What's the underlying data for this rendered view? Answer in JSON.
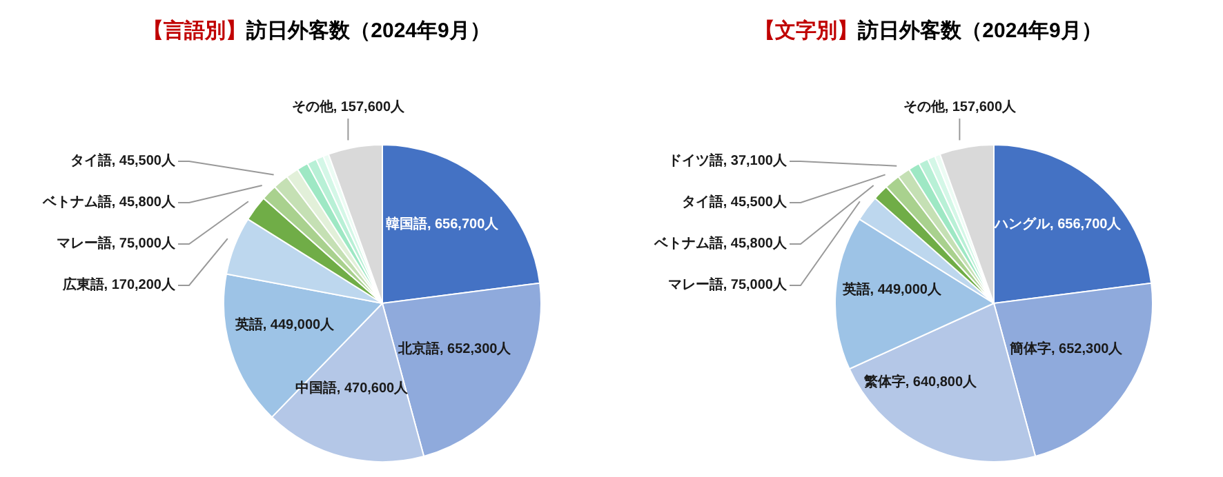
{
  "chart_data": [
    {
      "type": "pie",
      "title": "【言語別】訪日外客数（2024年9月）",
      "categories": [
        "韓国語",
        "北京語",
        "中国語",
        "英語",
        "広東語",
        "マレー語",
        "ベトナム語",
        "タイ語",
        null,
        null,
        null,
        null,
        null,
        "その他"
      ],
      "values": [
        656700,
        652300,
        470600,
        449000,
        170200,
        75000,
        45800,
        45500,
        37100,
        33000,
        28000,
        22000,
        16000,
        157600
      ],
      "value_labels": [
        "656,700人",
        "652,300人",
        "470,600人",
        "449,000人",
        "170,200人",
        "75,000人",
        "45,800人",
        "45,500人",
        null,
        null,
        null,
        null,
        null,
        "157,600人"
      ],
      "colors": [
        "#4472c4",
        "#8faadc",
        "#b4c7e7",
        "#9dc3e6",
        "#bdd7ee",
        "#70ad47",
        "#a9d18e",
        "#c5e0b4",
        "#e2f0d9",
        "#9ee8c4",
        "#b8f0d6",
        "#d4f7e7",
        "#ecfcf4",
        "#d9d9d9"
      ],
      "legend": false
    },
    {
      "type": "pie",
      "title": "【文字別】訪日外客数（2024年9月）",
      "categories": [
        "ハングル",
        "簡体字",
        "繁体字",
        "英語",
        "マレー語",
        "ベトナム語",
        "タイ語",
        "ドイツ語",
        null,
        null,
        null,
        null,
        "その他"
      ],
      "values": [
        656700,
        652300,
        640800,
        449000,
        75000,
        45800,
        45500,
        37100,
        33000,
        28000,
        22000,
        16000,
        157600
      ],
      "value_labels": [
        "656,700人",
        "652,300人",
        "640,800人",
        "449,000人",
        "75,000人",
        "45,800人",
        "45,500人",
        "37,100人",
        null,
        null,
        null,
        null,
        "157,600人"
      ],
      "colors": [
        "#4472c4",
        "#8faadc",
        "#b4c7e7",
        "#9dc3e6",
        "#bdd7ee",
        "#70ad47",
        "#a9d18e",
        "#c5e0b4",
        "#9ee8c4",
        "#b8f0d6",
        "#d4f7e7",
        "#ecfcf4",
        "#d9d9d9"
      ],
      "legend": false
    }
  ]
}
